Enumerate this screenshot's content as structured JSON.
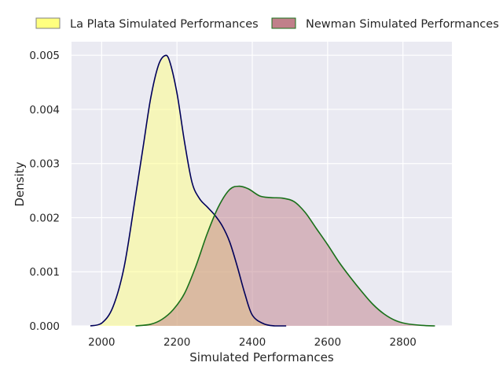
{
  "chart_data": {
    "type": "area",
    "title": "",
    "xlabel": "Simulated Performances",
    "ylabel": "Density",
    "xlim": [
      1920,
      2930
    ],
    "ylim": [
      0,
      0.00525
    ],
    "xticks": [
      2000,
      2200,
      2400,
      2600,
      2800
    ],
    "yticks": [
      0.0,
      0.001,
      0.002,
      0.003,
      0.004,
      0.005
    ],
    "ytick_labels": [
      "0.000",
      "0.001",
      "0.002",
      "0.003",
      "0.004",
      "0.005"
    ],
    "grid": true,
    "legend_position": "top",
    "series": [
      {
        "name": "La Plata Simulated Performances",
        "fill_color": "#ffff7f",
        "line_color": "#00005a",
        "x": [
          1970,
          2000,
          2030,
          2060,
          2090,
          2110,
          2130,
          2150,
          2167,
          2180,
          2200,
          2220,
          2240,
          2260,
          2280,
          2300,
          2320,
          2340,
          2360,
          2380,
          2400,
          2430,
          2460,
          2490
        ],
        "y": [
          0.0,
          5e-05,
          0.00035,
          0.0011,
          0.0024,
          0.0033,
          0.0042,
          0.0048,
          0.00499,
          0.0049,
          0.0043,
          0.0034,
          0.00265,
          0.00235,
          0.0022,
          0.00205,
          0.00185,
          0.00155,
          0.0011,
          0.0006,
          0.0002,
          4e-05,
          0.0,
          0.0
        ]
      },
      {
        "name": "Newman Simulated Performances",
        "fill_color": "#c0808a",
        "line_color": "#197019",
        "x": [
          2090,
          2130,
          2160,
          2190,
          2220,
          2250,
          2280,
          2310,
          2340,
          2365,
          2390,
          2420,
          2450,
          2480,
          2510,
          2540,
          2570,
          2600,
          2630,
          2660,
          2690,
          2720,
          2750,
          2780,
          2810,
          2850,
          2885
        ],
        "y": [
          0.0,
          3e-05,
          0.00012,
          0.0003,
          0.0006,
          0.0011,
          0.0017,
          0.0022,
          0.00252,
          0.00258,
          0.00253,
          0.0024,
          0.00237,
          0.00236,
          0.0023,
          0.0021,
          0.0018,
          0.0015,
          0.00118,
          0.0009,
          0.00064,
          0.0004,
          0.00022,
          0.0001,
          4e-05,
          1e-05,
          0.0
        ]
      }
    ]
  }
}
